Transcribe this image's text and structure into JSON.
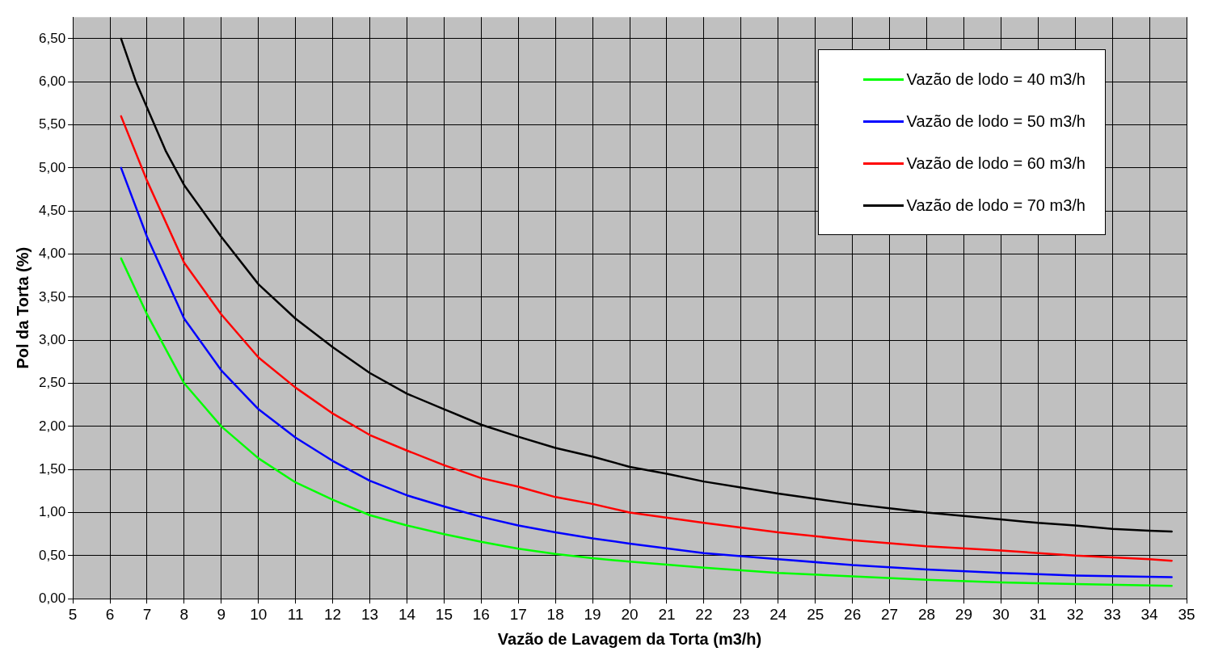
{
  "chart_data": {
    "type": "line",
    "xlabel": "Vazão de Lavagem da Torta (m3/h)",
    "ylabel": "Pol da Torta (%)",
    "xlim": [
      5,
      35
    ],
    "xticks": [
      5,
      6,
      7,
      8,
      9,
      10,
      11,
      12,
      13,
      14,
      15,
      16,
      17,
      18,
      19,
      20,
      21,
      22,
      23,
      24,
      25,
      26,
      27,
      28,
      29,
      30,
      31,
      32,
      33,
      34,
      35
    ],
    "ylim": [
      0,
      6.75
    ],
    "yticks": [
      {
        "value": 0,
        "label": "0,00"
      },
      {
        "value": 0.5,
        "label": "0,50"
      },
      {
        "value": 1,
        "label": "1,00"
      },
      {
        "value": 1.5,
        "label": "1,50"
      },
      {
        "value": 2,
        "label": "2,00"
      },
      {
        "value": 2.5,
        "label": "2,50"
      },
      {
        "value": 3,
        "label": "3,00"
      },
      {
        "value": 3.5,
        "label": "3,50"
      },
      {
        "value": 4,
        "label": "4,00"
      },
      {
        "value": 4.5,
        "label": "4,50"
      },
      {
        "value": 5,
        "label": "5,00"
      },
      {
        "value": 5.5,
        "label": "5,50"
      },
      {
        "value": 6,
        "label": "6,00"
      },
      {
        "value": 6.5,
        "label": "6,50"
      }
    ],
    "grid": true,
    "legend": "top right",
    "marker": "none",
    "line_style": "solid",
    "series": [
      {
        "name": "Vazão de lodo = 40 m3/h",
        "color": "#00ff00",
        "x": [
          6.3,
          7,
          8,
          9,
          10,
          11,
          12,
          13,
          14,
          15,
          16,
          17,
          18,
          19,
          20,
          22,
          24,
          26,
          28,
          30,
          32,
          34.6
        ],
        "values": [
          3.95,
          3.3,
          2.5,
          2.0,
          1.63,
          1.35,
          1.15,
          0.97,
          0.85,
          0.75,
          0.66,
          0.58,
          0.52,
          0.47,
          0.43,
          0.36,
          0.3,
          0.26,
          0.22,
          0.19,
          0.17,
          0.15
        ]
      },
      {
        "name": "Vazão de lodo = 50 m3/h",
        "color": "#0000ff",
        "x": [
          6.3,
          7,
          8,
          9,
          10,
          11,
          12,
          13,
          14,
          15,
          16,
          17,
          18,
          19,
          20,
          22,
          24,
          26,
          28,
          30,
          32,
          34.6
        ],
        "values": [
          5.0,
          4.2,
          3.25,
          2.65,
          2.2,
          1.87,
          1.6,
          1.37,
          1.2,
          1.07,
          0.95,
          0.85,
          0.77,
          0.7,
          0.64,
          0.53,
          0.46,
          0.39,
          0.34,
          0.3,
          0.27,
          0.25
        ]
      },
      {
        "name": "Vazão de lodo = 60 m3/h",
        "color": "#ff0000",
        "x": [
          6.3,
          7,
          8,
          9,
          10,
          11,
          12,
          13,
          14,
          15,
          16,
          17,
          18,
          19,
          20,
          22,
          24,
          26,
          28,
          30,
          32,
          34,
          34.6
        ],
        "values": [
          5.6,
          4.85,
          3.9,
          3.3,
          2.8,
          2.45,
          2.15,
          1.9,
          1.72,
          1.55,
          1.4,
          1.3,
          1.18,
          1.1,
          1.0,
          0.88,
          0.77,
          0.68,
          0.61,
          0.56,
          0.5,
          0.46,
          0.44
        ]
      },
      {
        "name": "Vazão de lodo = 70 m3/h",
        "color": "#000000",
        "x": [
          6.3,
          6.7,
          7,
          7.5,
          8,
          9,
          10,
          11,
          12,
          13,
          14,
          15,
          16,
          17,
          18,
          19,
          20,
          21,
          22,
          23,
          24,
          25,
          26,
          27,
          28,
          29,
          30,
          31,
          32,
          33,
          34,
          34.6
        ],
        "values": [
          6.5,
          6.0,
          5.7,
          5.2,
          4.8,
          4.2,
          3.65,
          3.25,
          2.92,
          2.62,
          2.38,
          2.2,
          2.02,
          1.88,
          1.75,
          1.65,
          1.53,
          1.45,
          1.36,
          1.29,
          1.22,
          1.16,
          1.1,
          1.05,
          1.0,
          0.96,
          0.92,
          0.88,
          0.85,
          0.81,
          0.79,
          0.78
        ]
      }
    ]
  }
}
